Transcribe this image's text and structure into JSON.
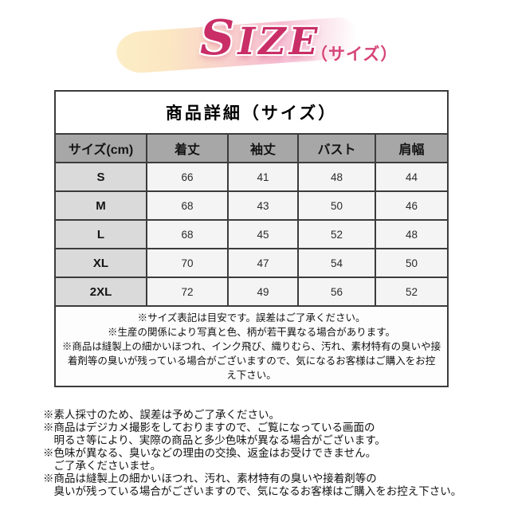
{
  "header": {
    "title": "SIZE",
    "subtitle": "（サイズ）"
  },
  "table": {
    "title": "商品詳細（サイズ）",
    "columns": [
      "サイズ(cm)",
      "着丈",
      "袖丈",
      "バスト",
      "肩幅"
    ],
    "rows": [
      {
        "size": "S",
        "values": [
          "66",
          "41",
          "48",
          "44"
        ]
      },
      {
        "size": "M",
        "values": [
          "68",
          "43",
          "50",
          "46"
        ]
      },
      {
        "size": "L",
        "values": [
          "68",
          "45",
          "52",
          "48"
        ]
      },
      {
        "size": "XL",
        "values": [
          "70",
          "47",
          "54",
          "50"
        ]
      },
      {
        "size": "2XL",
        "values": [
          "72",
          "49",
          "56",
          "52"
        ]
      }
    ],
    "notes_lines": [
      "※サイズ表記は目安です。誤差はご了承ください。",
      "※生産の関係により写真と色、柄が若干異なる場合があります。",
      "※商品は縫製上の細かいほつれ、インク飛び、織りむら、汚れ、素材特有の臭いや接",
      "着剤等の臭いが残っている場合がございますので、気になるお客様はご購入をお控",
      "え下さい。"
    ]
  },
  "footer": {
    "lines": [
      "※素人採寸のため、誤差は予めご了承ください。",
      "※商品はデジカメ撮影をしておりますので、ご覧になっている画面の",
      "　明るさ等により、実際の商品と多少色味が異なる場合がございます。",
      "※色味が異なる、臭いなどの理由の交換、返金はお受けできません。",
      "　ご了承くださいませ。",
      "※商品は縫製上の細かいほつれ、汚れ、素材特有の臭いや接着剤等の",
      "　臭いが残っている場合がございますので、気になるお客様はご購入をお控え下さい。"
    ]
  },
  "colors": {
    "accent_pink": "#c92e66",
    "subtitle_pink": "#d64579",
    "brush_yellow": "#fbe7c2",
    "brush_pink": "#f6bed2",
    "table_header_bg": "#a7a7a7",
    "size_column_bg": "#dadada",
    "cell_bg": "#f4f4f4",
    "table_border": "#3c3c3c"
  }
}
